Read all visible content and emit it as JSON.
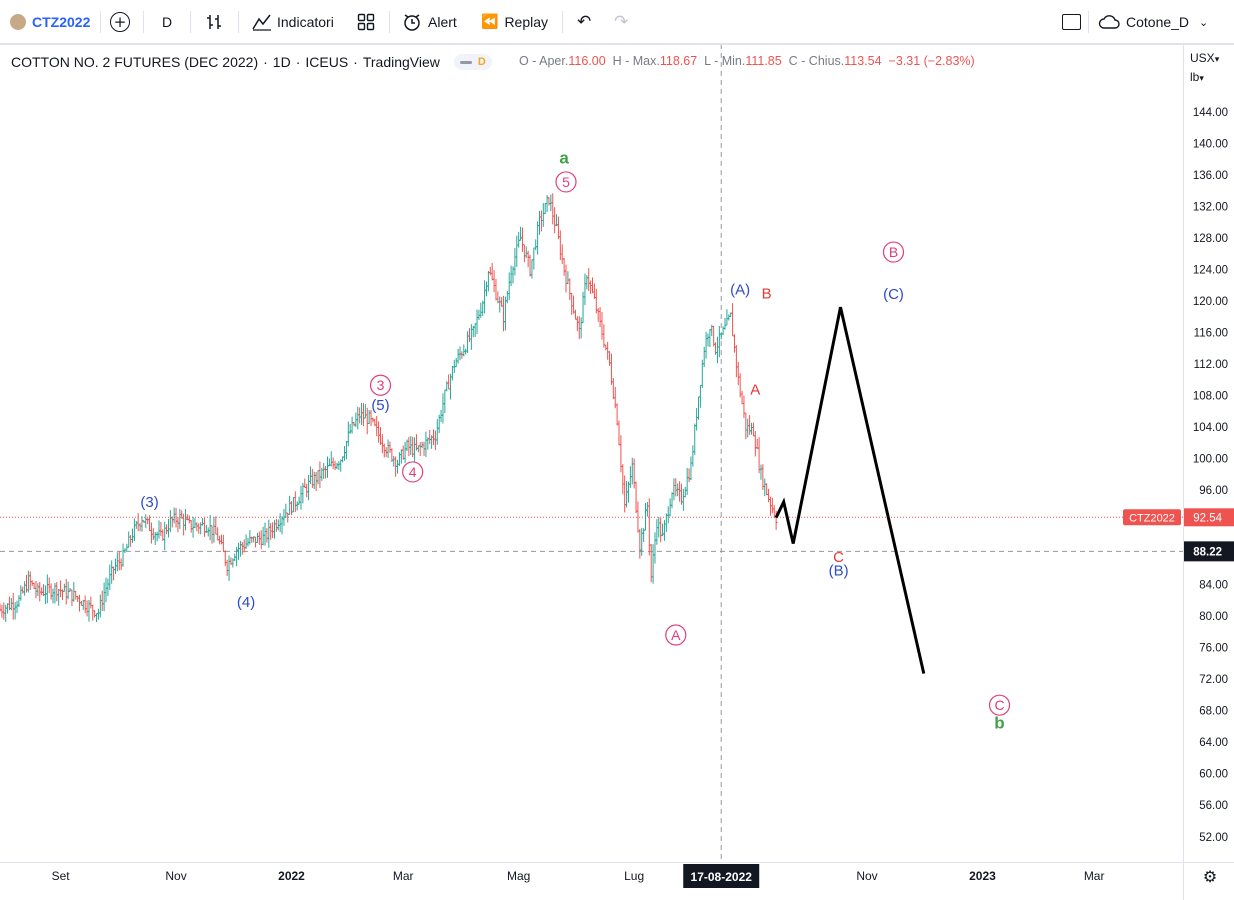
{
  "toolbar": {
    "symbol": "CTZ2022",
    "interval": "D",
    "indicators_label": "Indicatori",
    "alert_label": "Alert",
    "replay_label": "Replay",
    "layout_name": "Cotone_D"
  },
  "header": {
    "title": "COTTON NO. 2 FUTURES (DEC 2022)",
    "interval": "1D",
    "exchange": "ICEUS",
    "source": "TradingView",
    "pill_label": "D"
  },
  "ohlc": {
    "o_label": "O - Aper.",
    "o_value": "116.00",
    "h_label": "H - Max.",
    "h_value": "118.67",
    "l_label": "L - Min.",
    "l_value": "111.85",
    "c_label": "C - Chius.",
    "c_value": "113.54",
    "change": "−3.31 (−2.83%)"
  },
  "axis_units": {
    "currency": "USX",
    "weight": "lb"
  },
  "colors": {
    "up": "#26a69a",
    "down": "#ef5350",
    "wave_blue": "#2d4bc9",
    "wave_pink": "#e0407a",
    "wave_red": "#e53935",
    "wave_green": "#43a047",
    "projection": "#000000"
  },
  "chart_data": {
    "type": "ohlc",
    "title": "COTTON NO. 2 FUTURES (DEC 2022)",
    "ylim": [
      50,
      148
    ],
    "y_ticks": [
      "52.00",
      "56.00",
      "60.00",
      "64.00",
      "68.00",
      "72.00",
      "76.00",
      "80.00",
      "84.00",
      "88.00",
      "92.00",
      "96.00",
      "100.00",
      "104.00",
      "108.00",
      "112.00",
      "116.00",
      "120.00",
      "124.00",
      "128.00",
      "132.00",
      "136.00",
      "140.00",
      "144.00"
    ],
    "x_ticks": [
      {
        "label": "Set",
        "day": 32
      },
      {
        "label": "Nov",
        "day": 93
      },
      {
        "label": "2022",
        "day": 154
      },
      {
        "label": "Mar",
        "day": 213
      },
      {
        "label": "Mag",
        "day": 274
      },
      {
        "label": "Lug",
        "day": 335
      },
      {
        "label": "Nov",
        "day": 458
      },
      {
        "label": "2023",
        "day": 519
      },
      {
        "label": "Mar",
        "day": 578
      }
    ],
    "x_start_date": "2021-08-01",
    "x_range_days": [
      0,
      628
    ],
    "crosshair": {
      "date_label": "17-08-2022",
      "day": 381,
      "price_label": "88.22",
      "price": 88.22
    },
    "last_price": {
      "symbol": "CTZ2022",
      "value": "92.54",
      "price": 92.54
    },
    "price_path": [
      [
        0,
        80.8
      ],
      [
        10,
        82
      ],
      [
        15,
        84.5
      ],
      [
        20,
        83
      ],
      [
        30,
        83.5
      ],
      [
        40,
        82.5
      ],
      [
        48,
        81
      ],
      [
        52,
        80.5
      ],
      [
        55,
        83
      ],
      [
        60,
        86
      ],
      [
        65,
        87.5
      ],
      [
        70,
        90.5
      ],
      [
        75,
        92.5
      ],
      [
        80,
        91
      ],
      [
        85,
        90
      ],
      [
        90,
        92
      ],
      [
        95,
        92.5
      ],
      [
        100,
        91.5
      ],
      [
        110,
        91.5
      ],
      [
        115,
        90
      ],
      [
        120,
        86.5
      ],
      [
        125,
        88.5
      ],
      [
        132,
        89.5
      ],
      [
        140,
        90
      ],
      [
        148,
        92.5
      ],
      [
        156,
        94.5
      ],
      [
        164,
        97
      ],
      [
        172,
        98.5
      ],
      [
        180,
        100
      ],
      [
        185,
        103.5
      ],
      [
        190,
        105.5
      ],
      [
        195,
        105
      ],
      [
        200,
        103
      ],
      [
        205,
        101
      ],
      [
        210,
        99.5
      ],
      [
        215,
        101.5
      ],
      [
        220,
        101
      ],
      [
        225,
        102
      ],
      [
        230,
        103
      ],
      [
        235,
        108
      ],
      [
        240,
        112
      ],
      [
        245,
        114
      ],
      [
        250,
        116
      ],
      [
        255,
        120
      ],
      [
        258,
        124
      ],
      [
        262,
        121
      ],
      [
        266,
        118
      ],
      [
        270,
        124
      ],
      [
        275,
        128
      ],
      [
        280,
        124
      ],
      [
        285,
        130
      ],
      [
        290,
        133
      ],
      [
        294,
        129
      ],
      [
        298,
        124
      ],
      [
        302,
        120
      ],
      [
        306,
        116
      ],
      [
        310,
        123.5
      ],
      [
        314,
        120
      ],
      [
        318,
        116
      ],
      [
        322,
        112
      ],
      [
        326,
        105
      ],
      [
        330,
        94
      ],
      [
        334,
        99
      ],
      [
        338,
        89
      ],
      [
        342,
        94
      ],
      [
        344,
        85
      ],
      [
        347,
        92
      ],
      [
        350,
        90
      ],
      [
        355,
        96
      ],
      [
        360,
        95
      ],
      [
        365,
        99
      ],
      [
        369,
        108
      ],
      [
        372,
        114
      ],
      [
        375,
        117
      ],
      [
        378,
        114
      ],
      [
        382,
        116
      ],
      [
        386,
        118
      ],
      [
        390,
        110
      ],
      [
        394,
        104
      ],
      [
        398,
        103.5
      ],
      [
        402,
        98
      ],
      [
        406,
        95
      ],
      [
        410,
        92.5
      ]
    ],
    "projection_path": [
      [
        410,
        92.5
      ],
      [
        414,
        94.5
      ],
      [
        419,
        89.2
      ],
      [
        444,
        119.2
      ],
      [
        488,
        72.7
      ]
    ],
    "annotations": [
      {
        "text": "(3)",
        "day": 79,
        "price": 94.6,
        "color": "blue",
        "style": "paren"
      },
      {
        "text": "(4)",
        "day": 130,
        "price": 81.9,
        "color": "blue",
        "style": "paren"
      },
      {
        "text": "(5)",
        "day": 201,
        "price": 106.9,
        "color": "blue",
        "style": "paren"
      },
      {
        "text": "3",
        "day": 201,
        "price": 109.3,
        "color": "pink",
        "style": "circle"
      },
      {
        "text": "4",
        "day": 218,
        "price": 98.3,
        "color": "pink",
        "style": "circle"
      },
      {
        "text": "5",
        "day": 299,
        "price": 135.1,
        "color": "pink",
        "style": "circle"
      },
      {
        "text": "a",
        "day": 298,
        "price": 138.2,
        "color": "green",
        "style": "plain"
      },
      {
        "text": "A",
        "day": 357,
        "price": 77.6,
        "color": "pink",
        "style": "circle"
      },
      {
        "text": "(A)",
        "day": 391,
        "price": 121.6,
        "color": "blue",
        "style": "paren"
      },
      {
        "text": "B",
        "day": 405,
        "price": 121.1,
        "color": "red",
        "style": "plain"
      },
      {
        "text": "A",
        "day": 399,
        "price": 108.9,
        "color": "red",
        "style": "plain"
      },
      {
        "text": "C",
        "day": 443,
        "price": 87.6,
        "color": "red",
        "style": "plain"
      },
      {
        "text": "(B)",
        "day": 443,
        "price": 85.9,
        "color": "blue",
        "style": "paren"
      },
      {
        "text": "B",
        "day": 472,
        "price": 126.2,
        "color": "pink",
        "style": "circle"
      },
      {
        "text": "(C)",
        "day": 472,
        "price": 121.0,
        "color": "blue",
        "style": "paren"
      },
      {
        "text": "C",
        "day": 528,
        "price": 68.7,
        "color": "pink",
        "style": "circle"
      },
      {
        "text": "b",
        "day": 528,
        "price": 66.5,
        "color": "green",
        "style": "plain"
      }
    ]
  }
}
